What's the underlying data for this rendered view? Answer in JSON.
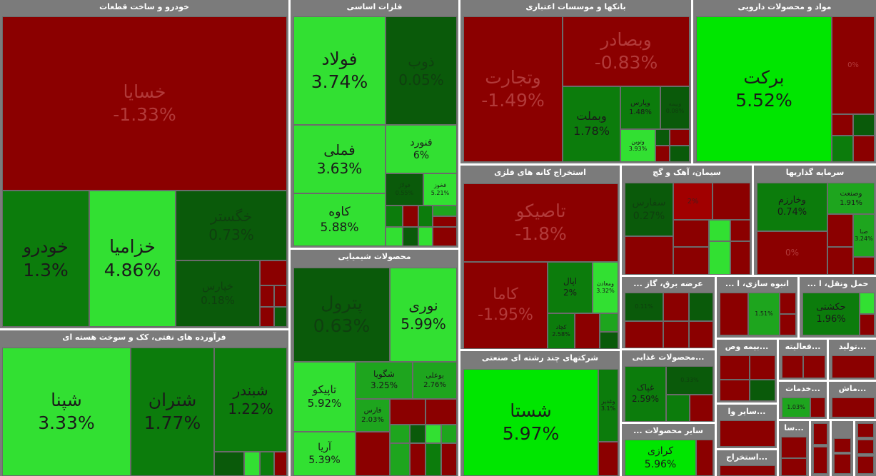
{
  "colors": {
    "dark_red": "#8b0000",
    "red": "#a10000",
    "dark_green": "#0a5a0a",
    "green": "#0c7c0c",
    "mid_green": "#1ea51e",
    "bright_green": "#32e032",
    "lime": "#00e600",
    "sector_header": "#7b7b7b"
  },
  "sectors": [
    {
      "title": "خودرو و ساخت قطعات",
      "tiles": [
        {
          "symbol": "خسایا",
          "change": "-1.33%"
        },
        {
          "symbol": "خودرو",
          "change": "1.3%"
        },
        {
          "symbol": "خزامیا",
          "change": "4.86%"
        },
        {
          "symbol": "خگستر",
          "change": "0.73%"
        },
        {
          "symbol": "خپارس",
          "change": "0.18%"
        }
      ]
    },
    {
      "title": "فرآورده های نفتی، کک و سوخت هسته ای",
      "tiles": [
        {
          "symbol": "شپنا",
          "change": "3.33%"
        },
        {
          "symbol": "شتران",
          "change": "1.77%"
        },
        {
          "symbol": "شبندر",
          "change": "1.22%"
        }
      ]
    },
    {
      "title": "فلزات اساسی",
      "tiles": [
        {
          "symbol": "فولاد",
          "change": "3.74%"
        },
        {
          "symbol": "ذوب",
          "change": "0.05%"
        },
        {
          "symbol": "فملی",
          "change": "3.63%"
        },
        {
          "symbol": "فنورد",
          "change": "6%"
        },
        {
          "symbol": "کاوه",
          "change": "5.88%"
        },
        {
          "symbol": "فولاژ",
          "change": "0.55%"
        },
        {
          "symbol": "فخوز",
          "change": "5.21%"
        }
      ]
    },
    {
      "title": "محصولات شیمیایی",
      "tiles": [
        {
          "symbol": "پترول",
          "change": "0.63%"
        },
        {
          "symbol": "نوری",
          "change": "5.99%"
        },
        {
          "symbol": "تاپیکو",
          "change": "5.92%"
        },
        {
          "symbol": "شگویا",
          "change": "3.25%"
        },
        {
          "symbol": "بوعلی",
          "change": "2.76%"
        },
        {
          "symbol": "فارس",
          "change": "2.03%"
        },
        {
          "symbol": "آریا",
          "change": "5.39%"
        }
      ]
    },
    {
      "title": "بانکها و موسسات اعتباری",
      "tiles": [
        {
          "symbol": "وتجارت",
          "change": "-1.49%"
        },
        {
          "symbol": "وبصادر",
          "change": "-0.83%"
        },
        {
          "symbol": "وبملت",
          "change": "1.78%"
        },
        {
          "symbol": "وپارس",
          "change": "1.48%"
        },
        {
          "symbol": "وبیمه",
          "change": "0.08%"
        },
        {
          "symbol": "وتوین",
          "change": "3.93%"
        }
      ]
    },
    {
      "title": "استخراج کانه های فلزی",
      "tiles": [
        {
          "symbol": "تاصیکو",
          "change": "-1.8%"
        },
        {
          "symbol": "کاما",
          "change": "-1.95%"
        },
        {
          "symbol": "اپال",
          "change": "2%"
        },
        {
          "symbol": "ومعادن",
          "change": "3.32%"
        },
        {
          "symbol": "کچاد",
          "change": "2.58%"
        }
      ]
    },
    {
      "title": "شرکتهای چند رشته ای صنعتی",
      "tiles": [
        {
          "symbol": "شستا",
          "change": "5.97%"
        },
        {
          "symbol": "وغدیر",
          "change": "3.1%"
        }
      ]
    },
    {
      "title": "مواد و محصولات دارویی",
      "tiles": [
        {
          "symbol": "برکت",
          "change": "5.52%"
        },
        {
          "symbol": "",
          "change": "0%"
        }
      ]
    },
    {
      "title": "سیمان، آهک و گچ",
      "tiles": [
        {
          "symbol": "سفارس",
          "change": "0.27%"
        },
        {
          "symbol": "",
          "change": "2%"
        }
      ]
    },
    {
      "title": "سرمایه گذاریها",
      "tiles": [
        {
          "symbol": "وخارزم",
          "change": "0.74%"
        },
        {
          "symbol": "وصنعت",
          "change": "1.91%"
        },
        {
          "symbol": "صبا",
          "change": "3.24%"
        },
        {
          "symbol": "",
          "change": "0%"
        }
      ]
    },
    {
      "title": "... عرضه برق، گاز",
      "tiles": [
        {
          "symbol": "",
          "change": "0.11%"
        }
      ]
    },
    {
      "title": "... انبوه سازی، ا",
      "tiles": [
        {
          "symbol": "",
          "change": "1.51%"
        }
      ]
    },
    {
      "title": "... حمل ونقل، ا",
      "tiles": [
        {
          "symbol": "حکشتی",
          "change": "1.96%"
        }
      ]
    },
    {
      "title": "محصولات غذایی...",
      "tiles": [
        {
          "symbol": "غپاک",
          "change": "2.59%"
        },
        {
          "symbol": "",
          "change": "0.33%"
        }
      ]
    },
    {
      "title": "... سایر محصولات",
      "tiles": [
        {
          "symbol": "کرازی",
          "change": "5.96%"
        }
      ]
    },
    {
      "title": "بیمه وص...",
      "tiles": []
    },
    {
      "title": "فعالیته...",
      "tiles": []
    },
    {
      "title": "تولید...",
      "tiles": []
    },
    {
      "title": "خدمات...",
      "tiles": [
        {
          "symbol": "",
          "change": "1.03%"
        }
      ]
    },
    {
      "title": "ماش...",
      "tiles": []
    },
    {
      "title": "سایر وا...",
      "tiles": []
    },
    {
      "title": "سا...",
      "tiles": []
    },
    {
      "title": "استخراج...",
      "tiles": []
    }
  ]
}
